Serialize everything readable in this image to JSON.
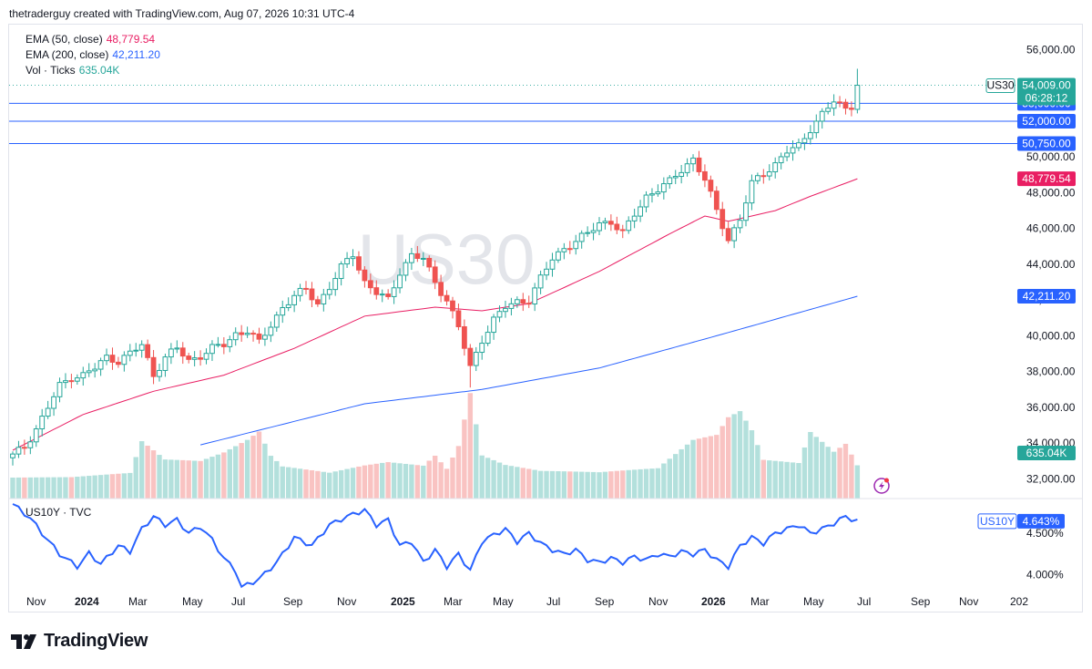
{
  "header": {
    "text": "thetraderguy created with TradingView.com, Aug 07, 2026 10:31 UTC-4"
  },
  "legend": [
    {
      "label": "EMA (50, close)",
      "value": "48,779.54",
      "color": "#e91e63"
    },
    {
      "label": "EMA (200, close)",
      "value": "42,211.20",
      "color": "#2962ff"
    },
    {
      "label": "Vol · Ticks",
      "value": "635.04K",
      "color": "#26a69a"
    }
  ],
  "watermark": "US30",
  "colors": {
    "up": "#26a69a",
    "down": "#ef5350",
    "ema50": "#e91e63",
    "ema200": "#2962ff",
    "hline": "#2962ff",
    "us10y": "#2962ff"
  },
  "footer": {
    "brand": "TradingView",
    "logo_icon": "tradingview-logo-icon"
  },
  "lower_pane": {
    "label": "US10Y · TVC",
    "badge_symbol": "US10Y",
    "badge_value": "4.643%",
    "ticks": [
      "4.500%",
      "4.000%"
    ]
  },
  "chart_data": [
    {
      "type": "candlestick",
      "symbol": "US30",
      "timeframe": "weekly",
      "y_ticks": [
        "56,000.00",
        "50,000.00",
        "48,000.00",
        "46,000.00",
        "44,000.00",
        "42,000.00",
        "40,000.00",
        "38,000.00",
        "36,000.00",
        "34,000.00",
        "32,000.00"
      ],
      "ylim": [
        30900,
        57400
      ],
      "x_ticks": [
        "Nov",
        "2024",
        "Mar",
        "May",
        "Jul",
        "Sep",
        "Nov",
        "2025",
        "Mar",
        "May",
        "Jul",
        "Sep",
        "Nov",
        "2026",
        "Mar",
        "May",
        "Jul",
        "Sep",
        "Nov",
        "202"
      ],
      "last_price": {
        "symbol": "US30",
        "price": "54,009.00",
        "countdown": "06:28:12",
        "value": 54009
      },
      "horizontal_lines": [
        {
          "value": 53000,
          "label": "53,000.00"
        },
        {
          "value": 52000,
          "label": "52,000.00"
        },
        {
          "value": 50750,
          "label": "50,750.00"
        }
      ],
      "ema50_label": "48,779.54",
      "ema200_label": "42,211.20",
      "volume_label": "635.04K",
      "close_anchors": [
        [
          0,
          33300
        ],
        [
          2,
          33800
        ],
        [
          4,
          34800
        ],
        [
          6,
          36000
        ],
        [
          8,
          37200
        ],
        [
          10,
          37700
        ],
        [
          12,
          37800
        ],
        [
          14,
          38200
        ],
        [
          16,
          38800
        ],
        [
          18,
          38600
        ],
        [
          20,
          39000
        ],
        [
          22,
          39500
        ],
        [
          24,
          37800
        ],
        [
          26,
          38800
        ],
        [
          28,
          39300
        ],
        [
          30,
          38600
        ],
        [
          32,
          38900
        ],
        [
          34,
          39300
        ],
        [
          36,
          39500
        ],
        [
          38,
          40100
        ],
        [
          40,
          40300
        ],
        [
          42,
          39600
        ],
        [
          44,
          40600
        ],
        [
          46,
          41600
        ],
        [
          48,
          42200
        ],
        [
          50,
          42600
        ],
        [
          52,
          41800
        ],
        [
          54,
          42700
        ],
        [
          56,
          43800
        ],
        [
          58,
          44600
        ],
        [
          60,
          43000
        ],
        [
          62,
          42400
        ],
        [
          64,
          42000
        ],
        [
          66,
          43600
        ],
        [
          68,
          44500
        ],
        [
          70,
          44300
        ],
        [
          72,
          43000
        ],
        [
          74,
          42000
        ],
        [
          76,
          40500
        ],
        [
          78,
          38200
        ],
        [
          80,
          39800
        ],
        [
          82,
          40900
        ],
        [
          84,
          41600
        ],
        [
          86,
          41900
        ],
        [
          88,
          42000
        ],
        [
          90,
          43200
        ],
        [
          92,
          44300
        ],
        [
          94,
          44900
        ],
        [
          96,
          45300
        ],
        [
          98,
          45700
        ],
        [
          100,
          46300
        ],
        [
          102,
          46400
        ],
        [
          104,
          45700
        ],
        [
          106,
          46800
        ],
        [
          108,
          47800
        ],
        [
          110,
          48200
        ],
        [
          112,
          48600
        ],
        [
          114,
          49300
        ],
        [
          116,
          49900
        ],
        [
          118,
          48700
        ],
        [
          120,
          47000
        ],
        [
          122,
          45400
        ],
        [
          124,
          46500
        ],
        [
          126,
          48500
        ],
        [
          128,
          49100
        ],
        [
          130,
          49600
        ],
        [
          132,
          50300
        ],
        [
          134,
          50600
        ],
        [
          136,
          51600
        ],
        [
          138,
          52400
        ],
        [
          140,
          53100
        ],
        [
          142,
          52700
        ],
        [
          143,
          52900
        ],
        [
          144,
          54009
        ]
      ],
      "ema50_anchors": [
        [
          0,
          33600
        ],
        [
          12,
          35600
        ],
        [
          24,
          36900
        ],
        [
          36,
          37800
        ],
        [
          48,
          39300
        ],
        [
          60,
          41100
        ],
        [
          72,
          41600
        ],
        [
          80,
          41400
        ],
        [
          88,
          41800
        ],
        [
          100,
          43600
        ],
        [
          112,
          45700
        ],
        [
          118,
          46700
        ],
        [
          122,
          46400
        ],
        [
          130,
          47000
        ],
        [
          136,
          47800
        ],
        [
          144,
          48780
        ]
      ],
      "ema200_anchors": [
        [
          32,
          33900
        ],
        [
          60,
          36200
        ],
        [
          80,
          37000
        ],
        [
          100,
          38200
        ],
        [
          120,
          40000
        ],
        [
          144,
          42211
        ]
      ],
      "volume_anchors": [
        [
          0,
          0.2
        ],
        [
          10,
          0.18
        ],
        [
          20,
          0.2
        ],
        [
          22,
          0.5
        ],
        [
          26,
          0.32
        ],
        [
          32,
          0.3
        ],
        [
          36,
          0.38
        ],
        [
          40,
          0.5
        ],
        [
          42,
          0.58
        ],
        [
          44,
          0.35
        ],
        [
          46,
          0.25
        ],
        [
          54,
          0.2
        ],
        [
          60,
          0.28
        ],
        [
          64,
          0.32
        ],
        [
          70,
          0.3
        ],
        [
          72,
          0.4
        ],
        [
          74,
          0.28
        ],
        [
          76,
          0.5
        ],
        [
          78,
          1.0
        ],
        [
          80,
          0.4
        ],
        [
          84,
          0.3
        ],
        [
          90,
          0.23
        ],
        [
          100,
          0.2
        ],
        [
          110,
          0.23
        ],
        [
          116,
          0.5
        ],
        [
          120,
          0.55
        ],
        [
          122,
          0.72
        ],
        [
          124,
          0.78
        ],
        [
          126,
          0.6
        ],
        [
          128,
          0.32
        ],
        [
          134,
          0.3
        ],
        [
          136,
          0.6
        ],
        [
          140,
          0.42
        ],
        [
          142,
          0.5
        ],
        [
          144,
          0.3
        ]
      ]
    },
    {
      "type": "line",
      "symbol": "US10Y",
      "ylim": [
        3.8,
        4.85
      ],
      "last_value": 4.643,
      "anchors": [
        [
          0,
          4.85
        ],
        [
          3,
          4.68
        ],
        [
          5,
          4.5
        ],
        [
          8,
          4.25
        ],
        [
          11,
          4.1
        ],
        [
          13,
          4.26
        ],
        [
          15,
          4.13
        ],
        [
          18,
          4.35
        ],
        [
          20,
          4.28
        ],
        [
          22,
          4.55
        ],
        [
          24,
          4.7
        ],
        [
          26,
          4.6
        ],
        [
          28,
          4.66
        ],
        [
          30,
          4.5
        ],
        [
          32,
          4.58
        ],
        [
          34,
          4.42
        ],
        [
          36,
          4.2
        ],
        [
          38,
          4.05
        ],
        [
          39,
          3.85
        ],
        [
          42,
          3.95
        ],
        [
          45,
          4.15
        ],
        [
          48,
          4.45
        ],
        [
          51,
          4.35
        ],
        [
          54,
          4.6
        ],
        [
          57,
          4.7
        ],
        [
          60,
          4.78
        ],
        [
          62,
          4.6
        ],
        [
          64,
          4.66
        ],
        [
          66,
          4.35
        ],
        [
          68,
          4.4
        ],
        [
          70,
          4.15
        ],
        [
          72,
          4.3
        ],
        [
          74,
          4.1
        ],
        [
          76,
          4.25
        ],
        [
          78,
          4.05
        ],
        [
          80,
          4.4
        ],
        [
          82,
          4.48
        ],
        [
          84,
          4.55
        ],
        [
          86,
          4.4
        ],
        [
          88,
          4.5
        ],
        [
          90,
          4.38
        ],
        [
          92,
          4.3
        ],
        [
          94,
          4.25
        ],
        [
          96,
          4.3
        ],
        [
          98,
          4.18
        ],
        [
          100,
          4.15
        ],
        [
          102,
          4.2
        ],
        [
          104,
          4.15
        ],
        [
          106,
          4.22
        ],
        [
          108,
          4.18
        ],
        [
          110,
          4.25
        ],
        [
          112,
          4.22
        ],
        [
          114,
          4.28
        ],
        [
          116,
          4.25
        ],
        [
          118,
          4.3
        ],
        [
          120,
          4.18
        ],
        [
          122,
          4.1
        ],
        [
          124,
          4.35
        ],
        [
          126,
          4.45
        ],
        [
          128,
          4.38
        ],
        [
          130,
          4.5
        ],
        [
          132,
          4.55
        ],
        [
          134,
          4.6
        ],
        [
          136,
          4.5
        ],
        [
          138,
          4.55
        ],
        [
          140,
          4.62
        ],
        [
          142,
          4.7
        ],
        [
          144,
          4.643
        ]
      ]
    }
  ]
}
